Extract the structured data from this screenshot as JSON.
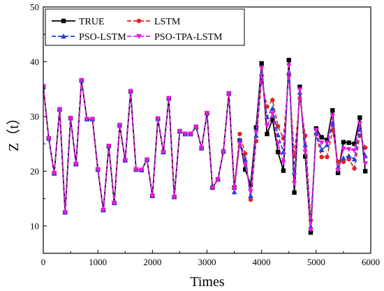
{
  "chart_data": {
    "type": "line",
    "title": "",
    "xlabel": "Times",
    "ylabel": "Z（t）",
    "xlim": [
      0,
      6000
    ],
    "ylim": [
      5,
      50
    ],
    "xticks": [
      "0",
      "1000",
      "2000",
      "3000",
      "4000",
      "5000",
      "6000"
    ],
    "yticks": [
      "10",
      "20",
      "30",
      "40",
      "50"
    ],
    "grid": false,
    "legend_position": "top-left",
    "x": [
      0,
      100,
      200,
      300,
      400,
      500,
      600,
      700,
      800,
      900,
      1000,
      1100,
      1200,
      1300,
      1400,
      1500,
      1600,
      1700,
      1800,
      1900,
      2000,
      2100,
      2200,
      2300,
      2400,
      2500,
      2600,
      2700,
      2800,
      2900,
      3000,
      3100,
      3200,
      3300,
      3400,
      3500,
      3600,
      3700,
      3800,
      3900,
      4000,
      4100,
      4200,
      4300,
      4400,
      4500,
      4600,
      4700,
      4800,
      4900,
      5000,
      5100,
      5200,
      5300,
      5400,
      5500,
      5600,
      5700,
      5800,
      5900
    ],
    "series": [
      {
        "name": "TRUE",
        "color": "#000000",
        "marker": "square",
        "dash": "solid",
        "values": [
          35.5,
          26,
          19.6,
          31.3,
          12.5,
          29.7,
          21.3,
          36.6,
          29.5,
          29.5,
          20.3,
          12.9,
          24.6,
          14.2,
          28.4,
          22.0,
          34.6,
          20.3,
          20.2,
          22.1,
          15.5,
          29.6,
          23.5,
          33.3,
          15.3,
          27.3,
          26.8,
          26.8,
          28.1,
          24.2,
          30.6,
          17.0,
          18.5,
          23.6,
          34.2,
          17.0,
          25.6,
          20.3,
          17.5,
          28.0,
          39.7,
          26.8,
          29.5,
          23.5,
          20.1,
          40.3,
          16.1,
          35.4,
          22.7,
          8.8,
          27.8,
          26.2,
          25.7,
          31.1,
          19.7,
          25.3,
          25.2,
          25.0,
          29.8,
          20.0
        ]
      },
      {
        "name": "LSTM",
        "color": "#e32222",
        "marker": "circle",
        "dash": "dashed",
        "values": [
          35.5,
          26,
          19.6,
          31.3,
          12.5,
          29.7,
          21.3,
          36.6,
          29.5,
          29.5,
          20.3,
          12.9,
          24.6,
          14.2,
          28.4,
          22.0,
          34.6,
          20.3,
          20.2,
          22.1,
          15.5,
          29.6,
          23.5,
          33.3,
          15.3,
          27.3,
          26.8,
          26.8,
          28.1,
          24.2,
          30.6,
          17.0,
          18.5,
          23.6,
          34.2,
          17.0,
          26.8,
          23.2,
          14.8,
          25.5,
          36.6,
          31.8,
          33.0,
          28.2,
          26.0,
          37.5,
          22.8,
          33.3,
          26.5,
          11.0,
          26.8,
          22.6,
          22.6,
          27.5,
          21.7,
          21.7,
          22.2,
          20.5,
          26.5,
          24.3
        ]
      },
      {
        "name": "PSO-LSTM",
        "color": "#1f3fd9",
        "marker": "triangle-up",
        "dash": "dashed",
        "values": [
          35.5,
          26,
          19.6,
          31.3,
          12.5,
          29.7,
          21.3,
          36.6,
          29.5,
          29.5,
          20.3,
          12.9,
          24.6,
          14.2,
          28.4,
          22.0,
          34.6,
          20.3,
          20.2,
          22.1,
          15.5,
          29.6,
          23.5,
          33.3,
          15.3,
          27.3,
          26.8,
          26.8,
          28.1,
          24.2,
          30.6,
          17.0,
          18.5,
          23.6,
          34.2,
          16.2,
          25.7,
          22.1,
          15.5,
          26.5,
          37.8,
          29.9,
          31.5,
          26.6,
          23.5,
          38.1,
          19.8,
          34.4,
          24.8,
          9.8,
          27.0,
          23.9,
          24.8,
          28.8,
          20.7,
          22.4,
          22.8,
          22.2,
          27.6,
          22.8
        ]
      },
      {
        "name": "PSO-TPA-LSTM",
        "color": "#e31ae3",
        "marker": "triangle-down",
        "dash": "dashed",
        "values": [
          35.5,
          26,
          19.6,
          31.3,
          12.5,
          29.7,
          21.3,
          36.6,
          29.5,
          29.5,
          20.3,
          12.9,
          24.6,
          14.2,
          28.4,
          22.0,
          34.6,
          20.3,
          20.2,
          22.1,
          15.5,
          29.6,
          23.5,
          33.3,
          15.3,
          27.3,
          26.8,
          26.8,
          28.1,
          24.2,
          30.6,
          17.0,
          18.5,
          23.6,
          34.2,
          16.8,
          25.0,
          21.2,
          16.3,
          27.1,
          38.8,
          28.3,
          30.5,
          25.1,
          21.6,
          39.3,
          17.8,
          34.9,
          23.5,
          9.3,
          27.5,
          25.2,
          25.2,
          30.1,
          20.2,
          24.1,
          24.0,
          23.8,
          28.7,
          21.4
        ]
      }
    ]
  }
}
